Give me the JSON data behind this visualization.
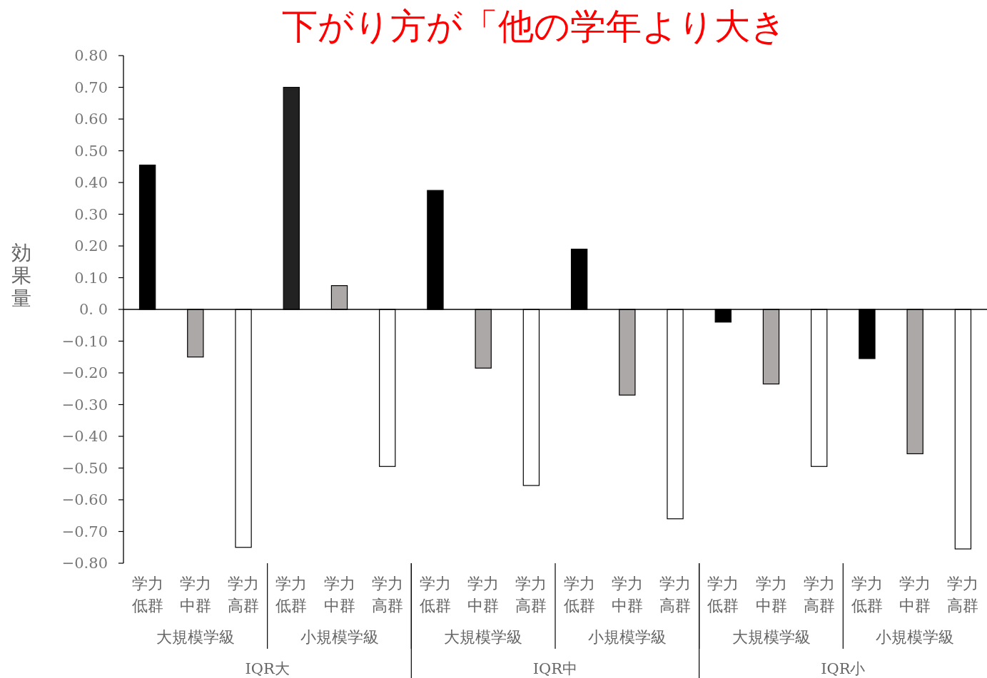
{
  "chart_data": {
    "type": "bar",
    "title": "下がり方が「他の学年より大き",
    "ylabel": "効果量",
    "categories": [
      "学力低群",
      "学力中群",
      "学力高群",
      "学力低群",
      "学力中群",
      "学力高群",
      "学力低群",
      "学力中群",
      "学力高群",
      "学力低群",
      "学力中群",
      "学力高群",
      "学力低群",
      "学力中群",
      "学力高群",
      "学力低群",
      "学力中群",
      "学力高群"
    ],
    "values": [
      0.455,
      -0.15,
      -0.75,
      0.7,
      0.075,
      -0.495,
      0.375,
      -0.185,
      -0.555,
      0.19,
      -0.27,
      -0.66,
      -0.04,
      -0.235,
      -0.495,
      -0.155,
      -0.455,
      -0.755
    ],
    "colors": [
      "#000000",
      "#aca8a7",
      "#ffffff",
      "#222222",
      "#aca8a7",
      "#ffffff",
      "#000000",
      "#aca8a7",
      "#ffffff",
      "#000000",
      "#aca8a7",
      "#ffffff",
      "#000000",
      "#aca8a7",
      "#ffffff",
      "#000000",
      "#aca8a7",
      "#ffffff"
    ],
    "ylim": [
      -0.8,
      0.8
    ],
    "yticks": [
      {
        "value": 0.8,
        "label": "0.80"
      },
      {
        "value": 0.7,
        "label": "0.70"
      },
      {
        "value": 0.6,
        "label": "0.60"
      },
      {
        "value": 0.5,
        "label": "0.50"
      },
      {
        "value": 0.4,
        "label": "0.40"
      },
      {
        "value": 0.3,
        "label": "0.30"
      },
      {
        "value": 0.2,
        "label": "0.20"
      },
      {
        "value": 0.1,
        "label": "0.10"
      },
      {
        "value": 0,
        "label": "0. 0"
      },
      {
        "value": -0.1,
        "label": "−0.10"
      },
      {
        "value": -0.2,
        "label": "−0.20"
      },
      {
        "value": -0.3,
        "label": "−0.30"
      },
      {
        "value": -0.4,
        "label": "−0.40"
      },
      {
        "value": -0.5,
        "label": "−0.50"
      },
      {
        "value": -0.6,
        "label": "−0.60"
      },
      {
        "value": -0.7,
        "label": "−0.70"
      },
      {
        "value": -0.8,
        "label": "−0.80"
      }
    ],
    "annotations": [
      "大規模学級",
      "小規模学級",
      "大規模学級",
      "小規模学級",
      "大規模学級",
      "小規模学級",
      "IQR大",
      "IQR中",
      "IQR小"
    ]
  }
}
